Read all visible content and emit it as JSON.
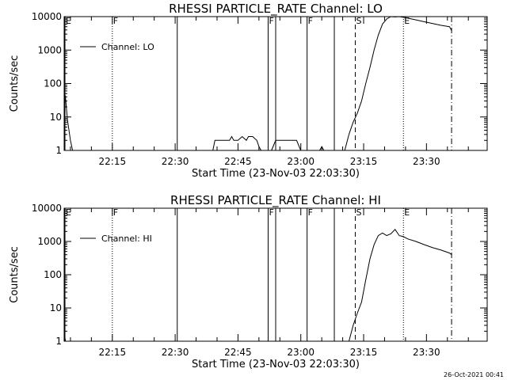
{
  "chart_data": [
    {
      "type": "line",
      "title": "RHESSI PARTICLE_RATE Channel: LO",
      "xlabel": "Start Time (23-Nov-03 22:03:30)",
      "ylabel": "Counts/sec",
      "yscale": "log",
      "ylim": [
        1,
        10000
      ],
      "xlim_minutes": [
        0,
        101
      ],
      "x_ticks": [
        {
          "min": 11.5,
          "label": "22:15"
        },
        {
          "min": 26.5,
          "label": "22:30"
        },
        {
          "min": 41.5,
          "label": "22:45"
        },
        {
          "min": 56.5,
          "label": "23:00"
        },
        {
          "min": 71.5,
          "label": "23:15"
        },
        {
          "min": 86.5,
          "label": "23:30"
        }
      ],
      "y_ticks": [
        {
          "value": 1,
          "label": "1"
        },
        {
          "value": 10,
          "label": "10"
        },
        {
          "value": 100,
          "label": "100"
        },
        {
          "value": 1000,
          "label": "1000"
        },
        {
          "value": 10000,
          "label": "10000"
        }
      ],
      "legend": {
        "placement": "top-left",
        "label": "Channel: LO"
      },
      "grid": false,
      "markers": [
        {
          "min": 0,
          "style": "solid",
          "label": "E"
        },
        {
          "min": 11.5,
          "style": "dotted",
          "label": "F"
        },
        {
          "min": 27,
          "style": "solid",
          "label": ""
        },
        {
          "min": 48.7,
          "style": "solid",
          "label": "F"
        },
        {
          "min": 50.5,
          "style": "solid",
          "label": ""
        },
        {
          "min": 58,
          "style": "solid",
          "label": "F"
        },
        {
          "min": 64.5,
          "style": "solid",
          "label": ""
        },
        {
          "min": 69.5,
          "style": "dashed",
          "label": "S"
        },
        {
          "min": 81,
          "style": "dotted",
          "label": "E"
        },
        {
          "min": 92.5,
          "style": "dashdot",
          "label": ""
        }
      ],
      "series": [
        {
          "name": "Channel: LO",
          "segments": [
            {
              "x": [
                0,
                0.3,
                0.8,
                1.5,
                2.0
              ],
              "y": [
                60,
                40,
                8,
                2,
                1
              ]
            },
            {
              "x": [
                35.5,
                36,
                37,
                38,
                39.5,
                40,
                40.5,
                41.5,
                42.5,
                43.5,
                44,
                45,
                46,
                46.5,
                47,
                48,
                49
              ],
              "y": [
                1,
                2,
                2,
                2,
                2,
                2.6,
                2,
                2,
                2.6,
                2,
                2.6,
                2.6,
                2,
                1.3,
                1,
                1,
                1
              ]
            },
            {
              "x": [
                49.5,
                50.5,
                51.5,
                52.5,
                53.5,
                54.5,
                55.5,
                56.5
              ],
              "y": [
                1,
                2,
                2,
                2,
                2,
                2,
                2,
                1
              ]
            },
            {
              "x": [
                61,
                61.5,
                62
              ],
              "y": [
                1,
                1.3,
                1
              ]
            },
            {
              "x": [
                67,
                68,
                69,
                70,
                71,
                72,
                73,
                74,
                75,
                76,
                77,
                78,
                79,
                80,
                81,
                82,
                84,
                86,
                88,
                90,
                92,
                92.5
              ],
              "y": [
                1,
                3,
                7,
                13,
                30,
                100,
                300,
                1000,
                2800,
                6000,
                8500,
                10000,
                9800,
                10000,
                9500,
                9000,
                8000,
                7000,
                6200,
                5500,
                5000,
                3800
              ]
            }
          ]
        }
      ]
    },
    {
      "type": "line",
      "title": "RHESSI PARTICLE_RATE Channel: HI",
      "xlabel": "Start Time (23-Nov-03 22:03:30)",
      "ylabel": "Counts/sec",
      "yscale": "log",
      "ylim": [
        1,
        10000
      ],
      "xlim_minutes": [
        0,
        101
      ],
      "x_ticks": [
        {
          "min": 11.5,
          "label": "22:15"
        },
        {
          "min": 26.5,
          "label": "22:30"
        },
        {
          "min": 41.5,
          "label": "22:45"
        },
        {
          "min": 56.5,
          "label": "23:00"
        },
        {
          "min": 71.5,
          "label": "23:15"
        },
        {
          "min": 86.5,
          "label": "23:30"
        }
      ],
      "y_ticks": [
        {
          "value": 1,
          "label": "1"
        },
        {
          "value": 10,
          "label": "10"
        },
        {
          "value": 100,
          "label": "100"
        },
        {
          "value": 1000,
          "label": "1000"
        },
        {
          "value": 10000,
          "label": "10000"
        }
      ],
      "legend": {
        "placement": "top-left",
        "label": "Channel: HI"
      },
      "grid": false,
      "markers": [
        {
          "min": 0,
          "style": "solid",
          "label": "E"
        },
        {
          "min": 11.5,
          "style": "dotted",
          "label": "F"
        },
        {
          "min": 27,
          "style": "solid",
          "label": ""
        },
        {
          "min": 48.7,
          "style": "solid",
          "label": "F"
        },
        {
          "min": 50.5,
          "style": "solid",
          "label": ""
        },
        {
          "min": 58,
          "style": "solid",
          "label": "F"
        },
        {
          "min": 64.5,
          "style": "solid",
          "label": ""
        },
        {
          "min": 69.5,
          "style": "dashed",
          "label": "S"
        },
        {
          "min": 81,
          "style": "dotted",
          "label": "E"
        },
        {
          "min": 92.5,
          "style": "dashdot",
          "label": ""
        }
      ],
      "series": [
        {
          "name": "Channel: HI",
          "segments": [
            {
              "x": [
                0,
                0.3
              ],
              "y": [
                2,
                1
              ]
            },
            {
              "x": [
                68,
                69,
                70,
                71,
                72,
                73,
                74,
                75,
                76,
                77,
                78,
                79,
                80,
                81,
                82,
                84,
                86,
                88,
                90,
                92,
                92.5
              ],
              "y": [
                1,
                3,
                7,
                15,
                70,
                300,
                800,
                1500,
                1800,
                1500,
                1700,
                2300,
                1500,
                1400,
                1200,
                1000,
                800,
                650,
                550,
                450,
                400
              ]
            }
          ]
        }
      ]
    }
  ],
  "timestamp": "26-Oct-2021 00:41"
}
